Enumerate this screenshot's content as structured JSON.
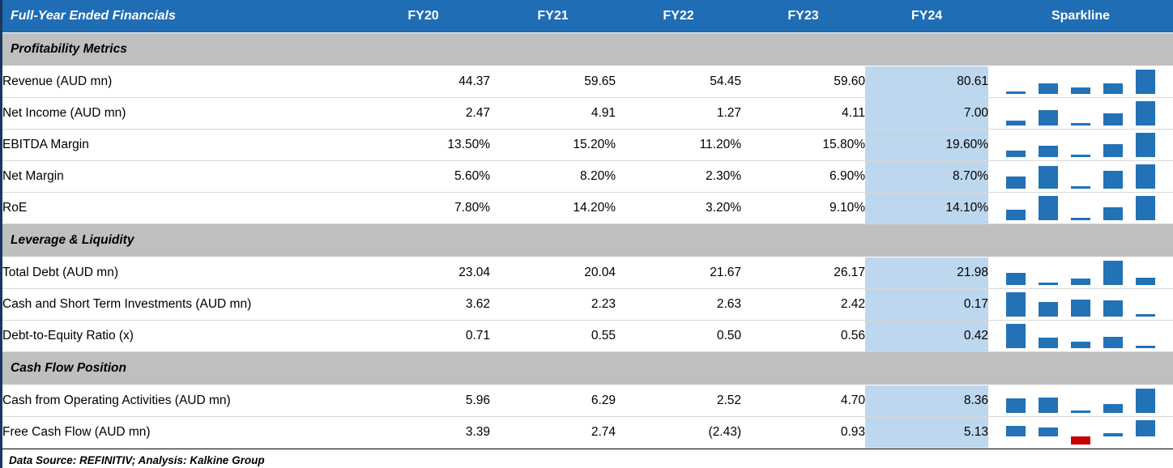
{
  "chart_data": {
    "type": "table",
    "title": "Full-Year Ended Financials",
    "columns": [
      "FY20",
      "FY21",
      "FY22",
      "FY23",
      "FY24"
    ],
    "sparkline_label": "Sparkline",
    "highlight_column": "FY24",
    "sparkline_type": "bar",
    "sections": [
      {
        "label": "Profitability Metrics",
        "rows": [
          {
            "label": "Revenue (AUD mn)",
            "display": [
              "44.37",
              "59.65",
              "54.45",
              "59.60",
              "80.61"
            ],
            "values": [
              44.37,
              59.65,
              54.45,
              59.6,
              80.61
            ]
          },
          {
            "label": "Net Income (AUD mn)",
            "display": [
              "2.47",
              "4.91",
              "1.27",
              "4.11",
              "7.00"
            ],
            "values": [
              2.47,
              4.91,
              1.27,
              4.11,
              7.0
            ]
          },
          {
            "label": "EBITDA Margin",
            "display": [
              "13.50%",
              "15.20%",
              "11.20%",
              "15.80%",
              "19.60%"
            ],
            "values": [
              13.5,
              15.2,
              11.2,
              15.8,
              19.6
            ]
          },
          {
            "label": "Net Margin",
            "display": [
              "5.60%",
              "8.20%",
              "2.30%",
              "6.90%",
              "8.70%"
            ],
            "values": [
              5.6,
              8.2,
              2.3,
              6.9,
              8.7
            ]
          },
          {
            "label": "RoE",
            "display": [
              "7.80%",
              "14.20%",
              "3.20%",
              "9.10%",
              "14.10%"
            ],
            "values": [
              7.8,
              14.2,
              3.2,
              9.1,
              14.1
            ]
          }
        ]
      },
      {
        "label": "Leverage & Liquidity",
        "rows": [
          {
            "label": "Total Debt (AUD mn)",
            "display": [
              "23.04",
              "20.04",
              "21.67",
              "26.17",
              "21.98"
            ],
            "values": [
              23.04,
              20.04,
              21.67,
              26.17,
              21.98
            ]
          },
          {
            "label": "Cash and Short Term Investments (AUD mn)",
            "display": [
              "3.62",
              "2.23",
              "2.63",
              "2.42",
              "0.17"
            ],
            "values": [
              3.62,
              2.23,
              2.63,
              2.42,
              0.17
            ]
          },
          {
            "label": "Debt-to-Equity Ratio (x)",
            "display": [
              "0.71",
              "0.55",
              "0.50",
              "0.56",
              "0.42"
            ],
            "values": [
              0.71,
              0.55,
              0.5,
              0.56,
              0.42
            ]
          }
        ]
      },
      {
        "label": "Cash Flow Position",
        "rows": [
          {
            "label": "Cash from Operating Activities (AUD mn)",
            "display": [
              "5.96",
              "6.29",
              "2.52",
              "4.70",
              "8.36"
            ],
            "values": [
              5.96,
              6.29,
              2.52,
              4.7,
              8.36
            ]
          },
          {
            "label": "Free Cash Flow (AUD mn)",
            "display": [
              "3.39",
              "2.74",
              "(2.43)",
              "0.93",
              "5.13"
            ],
            "values": [
              3.39,
              2.74,
              -2.43,
              0.93,
              5.13
            ]
          }
        ]
      }
    ]
  },
  "footer": {
    "source_note": "Data Source: REFINITIV; Analysis: Kalkine Group"
  },
  "colors": {
    "header_bg": "#1F6DB5",
    "section_bg": "#BFBFBF",
    "fy24_bg": "#BDD7EE",
    "spark_positive": "#2272B5",
    "spark_negative": "#C80000",
    "bottom_bar": "#1F6DB5",
    "accent_dark": "#17375E"
  }
}
